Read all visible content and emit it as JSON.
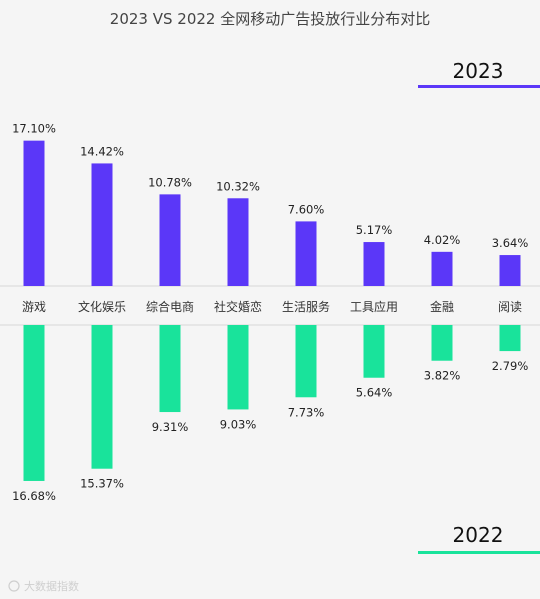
{
  "chart_data": {
    "type": "bar",
    "title": "2023 VS 2022 全网移动广告投放行业分布对比",
    "categories": [
      "游戏",
      "文化娱乐",
      "综合电商",
      "社交婚恋",
      "生活服务",
      "工具应用",
      "金融",
      "阅读"
    ],
    "series": [
      {
        "name": "2023",
        "color": "#5b37f8",
        "values": [
          17.1,
          14.42,
          10.78,
          10.32,
          7.6,
          5.17,
          4.02,
          3.64
        ],
        "labels": [
          "17.10%",
          "14.42%",
          "10.78%",
          "10.32%",
          "7.60%",
          "5.17%",
          "4.02%",
          "3.64%"
        ]
      },
      {
        "name": "2022",
        "color": "#19e39b",
        "values": [
          16.68,
          15.37,
          9.31,
          9.03,
          7.73,
          5.64,
          3.82,
          2.79
        ],
        "labels": [
          "16.68%",
          "15.37%",
          "9.31%",
          "9.03%",
          "7.73%",
          "5.64%",
          "3.82%",
          "2.79%"
        ]
      }
    ],
    "layout": "2023 bars above the category row, 2022 bars mirrored below",
    "grid": false
  },
  "watermark": "大数据指数",
  "colors": {
    "background": "#f5f5f5",
    "axis_line": "#d8d8d8"
  }
}
